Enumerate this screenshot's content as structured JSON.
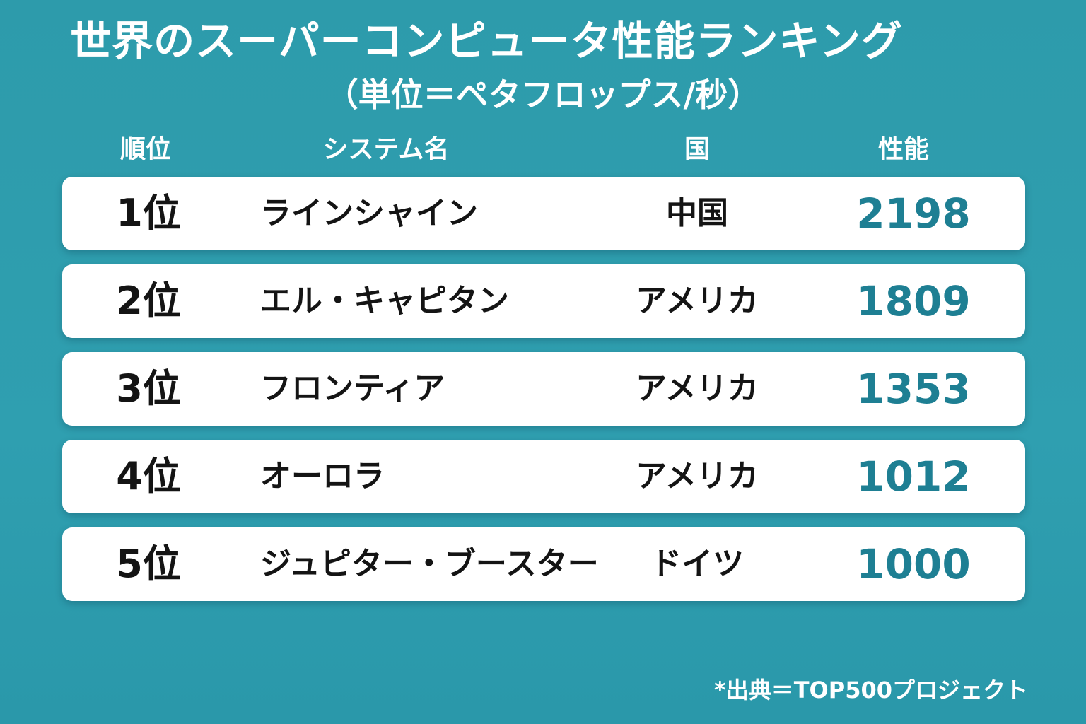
{
  "chart_data": {
    "type": "table",
    "title": "世界のスーパーコンピュータ性能ランキング",
    "subtitle": "（単位＝ペタフロップス/秒）",
    "columns": [
      "順位",
      "システム名",
      "国",
      "性能"
    ],
    "rows": [
      {
        "rank": "1位",
        "name": "ラインシャイン",
        "country": "中国",
        "performance": "2198"
      },
      {
        "rank": "2位",
        "name": "エル・キャピタン",
        "country": "アメリカ",
        "performance": "1809"
      },
      {
        "rank": "3位",
        "name": "フロンティア",
        "country": "アメリカ",
        "performance": "1353"
      },
      {
        "rank": "4位",
        "name": "オーロラ",
        "country": "アメリカ",
        "performance": "1012"
      },
      {
        "rank": "5位",
        "name": "ジュピター・ブースター",
        "country": "ドイツ",
        "performance": "1000"
      }
    ],
    "source": "*出典＝TOP500プロジェクト"
  },
  "colors": {
    "background": "#2d9bab",
    "row_background": "#ffffff",
    "text": "#141414",
    "performance_text": "#1e7f93",
    "header_text": "#ffffff"
  }
}
